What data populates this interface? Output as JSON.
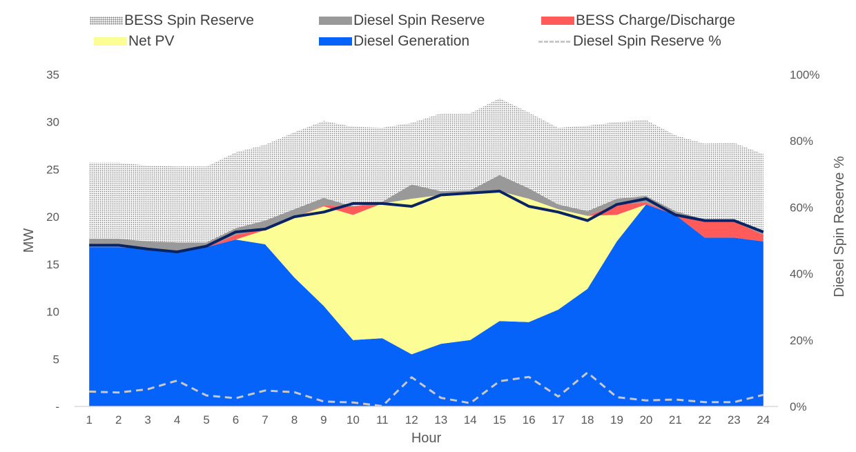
{
  "chart_data": {
    "type": "area",
    "xlabel": "Hour",
    "ylabel": "MW",
    "ylabel_right": "Diesel Spin Reserve %",
    "x": [
      1,
      2,
      3,
      4,
      5,
      6,
      7,
      8,
      9,
      10,
      11,
      12,
      13,
      14,
      15,
      16,
      17,
      18,
      19,
      20,
      21,
      22,
      23,
      24
    ],
    "y_ticks": [
      "-",
      "5",
      "10",
      "15",
      "20",
      "25",
      "30",
      "35"
    ],
    "ylim": [
      0,
      35
    ],
    "y2_ticks": [
      "0%",
      "20%",
      "40%",
      "60%",
      "80%",
      "100%"
    ],
    "y2lim": [
      0,
      100
    ],
    "legend_position": "top",
    "stack_order": [
      "Diesel Generation",
      "Net PV",
      "BESS Charge/Discharge",
      "Diesel Spin Reserve",
      "BESS Spin Reserve"
    ],
    "series": [
      {
        "name": "Diesel Generation",
        "kind": "area",
        "color": "#0563fa",
        "values": [
          16.8,
          16.8,
          16.6,
          16.4,
          16.8,
          17.6,
          17.1,
          13.6,
          10.6,
          7.0,
          7.2,
          5.5,
          6.6,
          7.0,
          9.0,
          8.9,
          10.2,
          12.4,
          17.4,
          21.3,
          20.2,
          17.8,
          17.8,
          17.4
        ]
      },
      {
        "name": "Net PV",
        "kind": "area",
        "color": "#fdfd96",
        "values": [
          0,
          0,
          0,
          0,
          0,
          0,
          1.5,
          6.3,
          10.5,
          13.2,
          14.2,
          16.4,
          15.7,
          15.5,
          13.7,
          13.0,
          10.6,
          7.7,
          2.8,
          0,
          0,
          0,
          0,
          0
        ]
      },
      {
        "name": "BESS Charge/Discharge",
        "kind": "area",
        "color": "#ff5b5b",
        "values": [
          0,
          0,
          0,
          0,
          0,
          0.5,
          0.1,
          0,
          0.1,
          0.9,
          0,
          0,
          0,
          0,
          0,
          0,
          0,
          0,
          1.1,
          0.2,
          0,
          1.7,
          1.7,
          0.7
        ]
      },
      {
        "name": "Diesel Spin Reserve",
        "kind": "area",
        "color": "#999999",
        "values": [
          0.9,
          0.9,
          0.8,
          0.9,
          0.5,
          0.7,
          0.9,
          0.9,
          0.8,
          0,
          0.2,
          1.5,
          0.4,
          0.3,
          1.7,
          1.1,
          0.5,
          0.5,
          0.6,
          0.7,
          0.4,
          0.2,
          0.2,
          0.4
        ]
      },
      {
        "name": "BESS Spin Reserve",
        "kind": "area",
        "color": "#f2f2f2",
        "pattern": "dotted",
        "values": [
          8.0,
          8.0,
          8.0,
          8.0,
          8.0,
          8.0,
          8.0,
          8.1,
          8.1,
          8.4,
          7.8,
          6.5,
          8.2,
          8.1,
          8.1,
          8.0,
          8.1,
          9.0,
          8.1,
          8.0,
          8.0,
          8.0,
          8.1,
          8.1
        ]
      },
      {
        "name": "",
        "kind": "line",
        "color": "#0a2463",
        "values": [
          17.0,
          17.0,
          16.6,
          16.3,
          16.9,
          18.4,
          18.7,
          20.0,
          20.5,
          21.4,
          21.4,
          21.1,
          22.3,
          22.5,
          22.7,
          21.1,
          20.5,
          19.6,
          21.3,
          21.9,
          20.2,
          19.6,
          19.6,
          18.4
        ]
      },
      {
        "name": "Diesel Spin Reserve %",
        "kind": "line",
        "axis": "right",
        "dash": true,
        "color": "#c8c8c8",
        "values": [
          4.5,
          4.2,
          5.2,
          7.8,
          3.3,
          2.5,
          4.8,
          4.3,
          1.5,
          1.2,
          0.1,
          8.8,
          2.6,
          1.0,
          7.6,
          8.9,
          3.0,
          10.2,
          2.8,
          1.8,
          2.1,
          1.3,
          1.3,
          3.5
        ]
      }
    ]
  }
}
